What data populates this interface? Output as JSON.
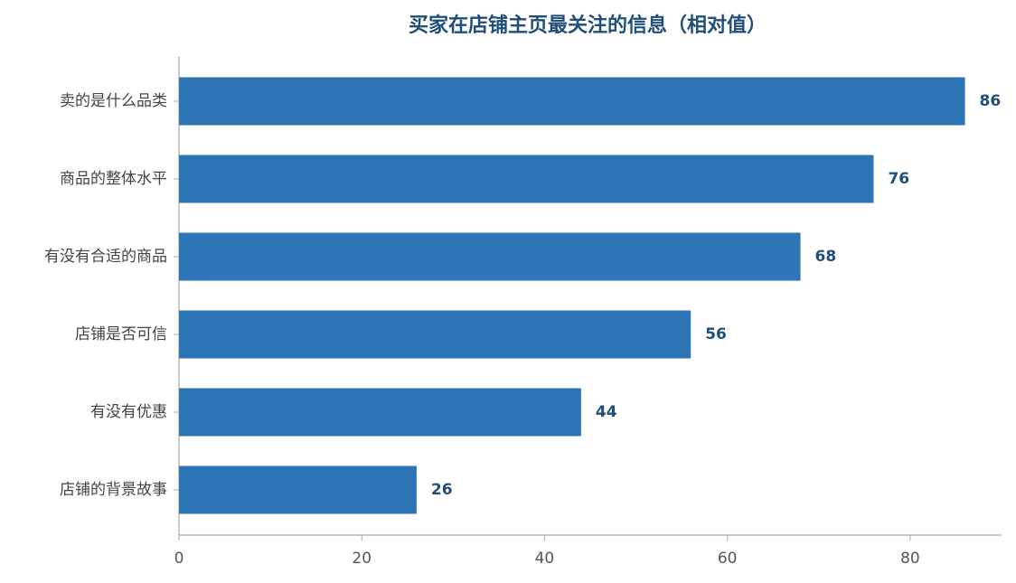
{
  "chart_data": {
    "type": "hbar",
    "title": "买家在店铺主页最关注的信息（相对值）",
    "categories": [
      "卖的是什么品类",
      "商品的整体水平",
      "有没有合适的商品",
      "店铺是否可信",
      "有没有优惠",
      "店铺的背景故事"
    ],
    "values": [
      86,
      76,
      68,
      56,
      44,
      26
    ],
    "color": "#2e75b6",
    "xlim": [
      0,
      90
    ],
    "xticks": [
      0,
      20,
      40,
      60,
      80
    ],
    "grid": false
  }
}
